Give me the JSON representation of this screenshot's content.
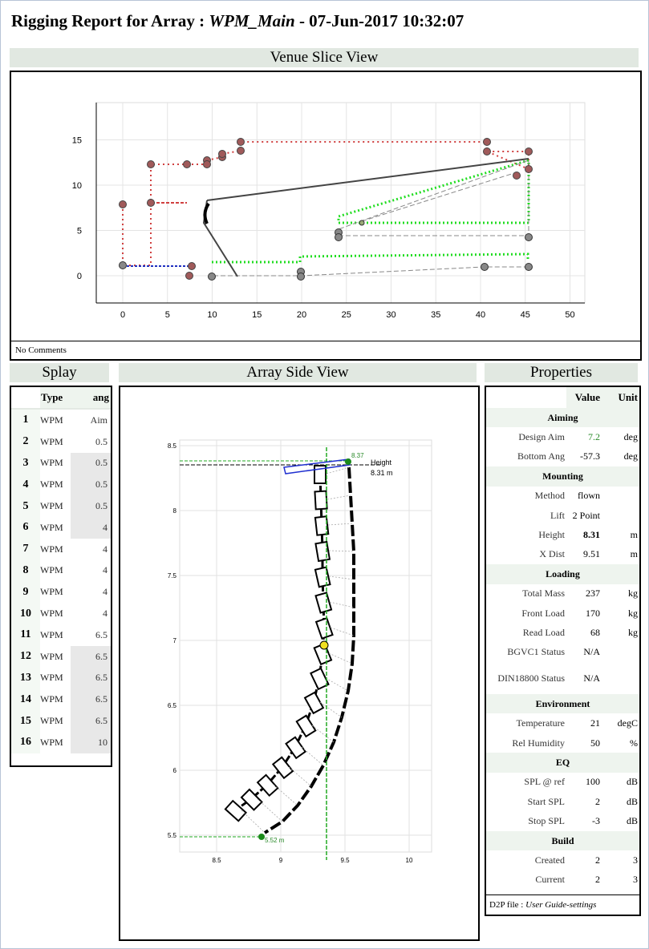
{
  "report": {
    "title_prefix": "Rigging Report for Array : ",
    "array_name": "WPM_Main",
    "title_suffix": " - 07-Jun-2017 10:32:07"
  },
  "venue": {
    "heading": "Venue Slice View",
    "comments": "No Comments",
    "x_ticks": [
      "0",
      "5",
      "10",
      "15",
      "20",
      "25",
      "30",
      "35",
      "40",
      "45",
      "50"
    ],
    "y_ticks": [
      "0",
      "5",
      "10",
      "15"
    ]
  },
  "splay": {
    "heading": "Splay",
    "col_type": "Type",
    "col_ang": "ang",
    "rows": [
      {
        "n": "1",
        "type": "WPM",
        "ang": "Aim"
      },
      {
        "n": "2",
        "type": "WPM",
        "ang": "0.5"
      },
      {
        "n": "3",
        "type": "WPM",
        "ang": "0.5"
      },
      {
        "n": "4",
        "type": "WPM",
        "ang": "0.5"
      },
      {
        "n": "5",
        "type": "WPM",
        "ang": "0.5"
      },
      {
        "n": "6",
        "type": "WPM",
        "ang": "4"
      },
      {
        "n": "7",
        "type": "WPM",
        "ang": "4"
      },
      {
        "n": "8",
        "type": "WPM",
        "ang": "4"
      },
      {
        "n": "9",
        "type": "WPM",
        "ang": "4"
      },
      {
        "n": "10",
        "type": "WPM",
        "ang": "4"
      },
      {
        "n": "11",
        "type": "WPM",
        "ang": "6.5"
      },
      {
        "n": "12",
        "type": "WPM",
        "ang": "6.5"
      },
      {
        "n": "13",
        "type": "WPM",
        "ang": "6.5"
      },
      {
        "n": "14",
        "type": "WPM",
        "ang": "6.5"
      },
      {
        "n": "15",
        "type": "WPM",
        "ang": "6.5"
      },
      {
        "n": "16",
        "type": "WPM",
        "ang": "10"
      }
    ]
  },
  "side": {
    "heading": "Array Side View",
    "x_ticks": [
      "8.5",
      "9",
      "9.5",
      "10"
    ],
    "y_ticks": [
      "5.5",
      "6",
      "6.5",
      "7",
      "7.5",
      "8",
      "8.5"
    ],
    "top_label": "8.37",
    "height_label_1": "Height",
    "height_label_2": "8.31 m",
    "bottom_label": "5.52 m"
  },
  "properties": {
    "heading": "Properties",
    "col_value": "Value",
    "col_unit": "Unit",
    "groups": [
      {
        "name": "Aiming",
        "rows": [
          {
            "label": "Design Aim",
            "value": "7.2",
            "unit": "deg",
            "color": "#2a8a2a"
          },
          {
            "label": "Bottom Ang",
            "value": "-57.3",
            "unit": "deg"
          }
        ]
      },
      {
        "name": "Mounting",
        "rows": [
          {
            "label": "Method",
            "value": "flown",
            "unit": ""
          },
          {
            "label": "Lift",
            "value": "2 Point",
            "unit": ""
          },
          {
            "label": "Height",
            "value": "8.31",
            "unit": "m",
            "bold": true
          },
          {
            "label": "X Dist",
            "value": "9.51",
            "unit": "m"
          }
        ]
      },
      {
        "name": "Loading",
        "rows": [
          {
            "label": "Total Mass",
            "value": "237",
            "unit": "kg"
          },
          {
            "label": "Front Load",
            "value": "170",
            "unit": "kg"
          },
          {
            "label": "Read Load",
            "value": "68",
            "unit": "kg"
          },
          {
            "label": "BGVC1 Status",
            "value": "N/A",
            "unit": ""
          },
          {
            "label": "DIN18800 Status",
            "value": "N/A",
            "unit": ""
          }
        ]
      },
      {
        "name": "Environment",
        "rows": [
          {
            "label": "Temperature",
            "value": "21",
            "unit": "degC"
          },
          {
            "label": "Rel Humidity",
            "value": "50",
            "unit": "%"
          }
        ]
      },
      {
        "name": "EQ",
        "rows": [
          {
            "label": "SPL @ ref",
            "value": "100",
            "unit": "dB"
          },
          {
            "label": "Start SPL",
            "value": "2",
            "unit": "dB"
          },
          {
            "label": "Stop SPL",
            "value": "-3",
            "unit": "dB"
          }
        ]
      },
      {
        "name": "Build",
        "rows": [
          {
            "label": "Created",
            "value": "2",
            "unit": "3"
          },
          {
            "label": "Current",
            "value": "2",
            "unit": "3"
          }
        ]
      }
    ],
    "footer_prefix": "D2P file : ",
    "footer_file": "User Guide-settings"
  }
}
